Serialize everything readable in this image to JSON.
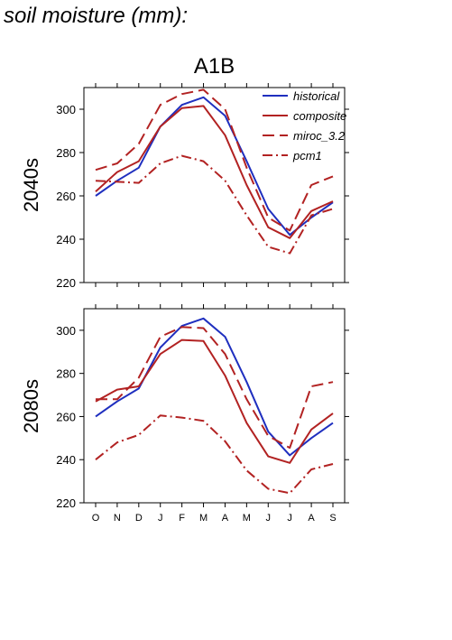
{
  "page_title": "soil moisture (mm):",
  "chart_data": [
    {
      "type": "line",
      "title": "A1B",
      "ylabel": "2040s",
      "xlabel": "",
      "categories": [
        "O",
        "N",
        "D",
        "J",
        "F",
        "M",
        "A",
        "M",
        "J",
        "J",
        "A",
        "S"
      ],
      "ylim": [
        220,
        310
      ],
      "yticks": [
        220,
        240,
        260,
        280,
        300
      ],
      "grid": false,
      "legend_placement": "top-right",
      "series": [
        {
          "name": "historical",
          "color": "#1f2fbf",
          "style": "solid",
          "values": [
            260,
            267,
            273,
            292,
            302,
            305.5,
            297,
            276,
            254,
            242,
            250,
            257
          ]
        },
        {
          "name": "composite",
          "color": "#b22222",
          "style": "solid",
          "values": [
            262,
            271,
            276,
            292,
            300.5,
            301.5,
            288,
            265,
            245.5,
            240.5,
            253,
            257.5
          ]
        },
        {
          "name": "miroc_3.2",
          "color": "#b22222",
          "style": "dash",
          "values": [
            272,
            275,
            284,
            302,
            307,
            309,
            300,
            273,
            250,
            244,
            265,
            269
          ]
        },
        {
          "name": "pcm1",
          "color": "#b22222",
          "style": "dashdot",
          "values": [
            267,
            266.5,
            266,
            275,
            278.5,
            276,
            267,
            251,
            236.5,
            233.5,
            251,
            254
          ]
        }
      ]
    },
    {
      "type": "line",
      "title": "",
      "ylabel": "2080s",
      "xlabel": "",
      "categories": [
        "O",
        "N",
        "D",
        "J",
        "F",
        "M",
        "A",
        "M",
        "J",
        "J",
        "A",
        "S"
      ],
      "ylim": [
        220,
        310
      ],
      "yticks": [
        220,
        240,
        260,
        280,
        300
      ],
      "grid": false,
      "series": [
        {
          "name": "historical",
          "color": "#1f2fbf",
          "style": "solid",
          "values": [
            260,
            267,
            273,
            292,
            302,
            305.5,
            297,
            276,
            253,
            242,
            250,
            257
          ]
        },
        {
          "name": "composite",
          "color": "#b22222",
          "style": "solid",
          "values": [
            267,
            272.5,
            274,
            289,
            295.5,
            295,
            279,
            257,
            241.5,
            238.5,
            254,
            261.5
          ]
        },
        {
          "name": "miroc_3.2",
          "color": "#b22222",
          "style": "dash",
          "values": [
            268,
            268,
            278,
            297,
            301.5,
            301,
            289,
            268,
            251,
            245.5,
            274,
            276
          ]
        },
        {
          "name": "pcm1",
          "color": "#b22222",
          "style": "dashdot",
          "values": [
            240,
            248,
            251.5,
            260.5,
            259.5,
            258,
            248.5,
            235,
            226.5,
            224.5,
            235.5,
            238
          ]
        }
      ]
    }
  ]
}
